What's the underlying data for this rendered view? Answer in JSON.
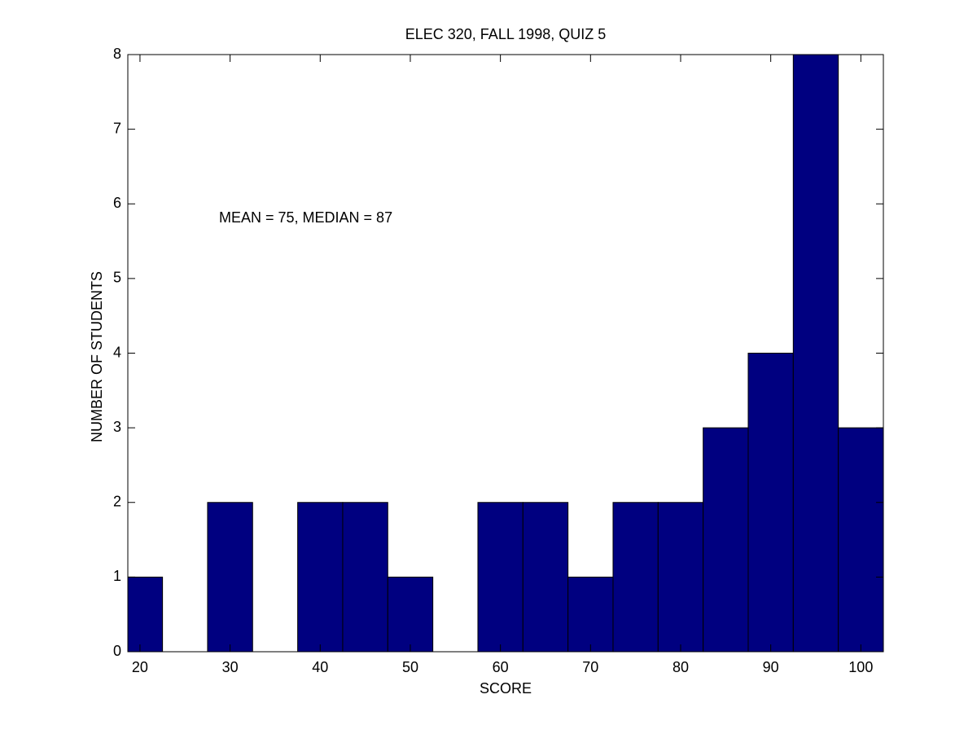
{
  "chart_data": {
    "type": "histogram",
    "title": "ELEC 320, FALL 1998, QUIZ 5",
    "x_label": "SCORE",
    "y_label": "NUMBER OF STUDENTS",
    "annotation": "MEAN = 75, MEDIAN = 87",
    "bins": [
      17.5,
      22.5,
      27.5,
      32.5,
      37.5,
      42.5,
      47.5,
      52.5,
      57.5,
      62.5,
      67.5,
      72.5,
      77.5,
      82.5,
      87.5,
      92.5,
      97.5,
      102.5
    ],
    "values": [
      1,
      0,
      2,
      0,
      2,
      2,
      1,
      0,
      2,
      2,
      1,
      2,
      2,
      3,
      4,
      8,
      3
    ],
    "color": "#000080",
    "xlim": [
      18.65,
      102.5
    ],
    "xticks": [
      20,
      30,
      40,
      50,
      60,
      70,
      80,
      90,
      100
    ],
    "ylim": [
      0,
      8
    ],
    "yticks": [
      0,
      1,
      2,
      3,
      4,
      5,
      6,
      7,
      8
    ]
  }
}
